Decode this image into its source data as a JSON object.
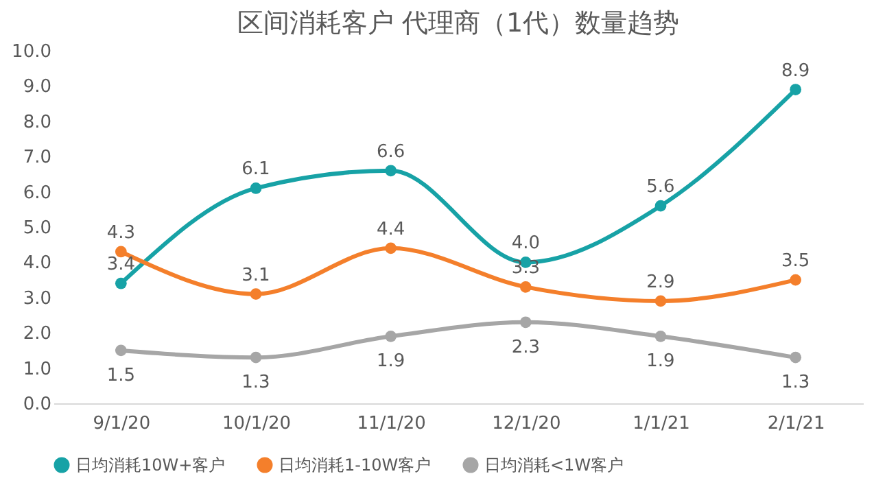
{
  "chart_data": {
    "type": "line",
    "title": "区间消耗客户  代理商（1代）数量趋势",
    "categories": [
      "9/1/20",
      "10/1/20",
      "11/1/20",
      "12/1/20",
      "1/1/21",
      "2/1/21"
    ],
    "series": [
      {
        "name": "日均消耗10W+客户",
        "color": "#17a2a6",
        "values": [
          3.4,
          6.1,
          6.6,
          4.0,
          5.6,
          8.9
        ],
        "value_labels": [
          "3.4",
          "6.1",
          "6.6",
          "4.0",
          "5.6",
          "8.9"
        ]
      },
      {
        "name": "日均消耗1-10W客户",
        "color": "#f47f2b",
        "values": [
          4.3,
          3.1,
          4.4,
          3.3,
          2.9,
          3.5
        ],
        "value_labels": [
          "4.3",
          "3.1",
          "4.4",
          "3.3",
          "2.9",
          "3.5"
        ]
      },
      {
        "name": "日均消耗<1W客户",
        "color": "#a6a6a6",
        "values": [
          1.5,
          1.3,
          1.9,
          2.3,
          1.9,
          1.3
        ],
        "value_labels": [
          "1.5",
          "1.3",
          "1.9",
          "2.3",
          "1.9",
          "1.3"
        ]
      }
    ],
    "ylim": [
      0,
      10
    ],
    "yticks": [
      {
        "value": 0,
        "label": "0.0"
      },
      {
        "value": 1,
        "label": "1.0"
      },
      {
        "value": 2,
        "label": "2.0"
      },
      {
        "value": 3,
        "label": "3.0"
      },
      {
        "value": 4,
        "label": "4.0"
      },
      {
        "value": 5,
        "label": "5.0"
      },
      {
        "value": 6,
        "label": "6.0"
      },
      {
        "value": 7,
        "label": "7.0"
      },
      {
        "value": 8,
        "label": "8.0"
      },
      {
        "value": 9,
        "label": "9.0"
      },
      {
        "value": 10,
        "label": "10.0"
      }
    ],
    "legend": "bottom",
    "marker": "circle",
    "line_style": "solid",
    "data_labels": true,
    "grid": false
  }
}
